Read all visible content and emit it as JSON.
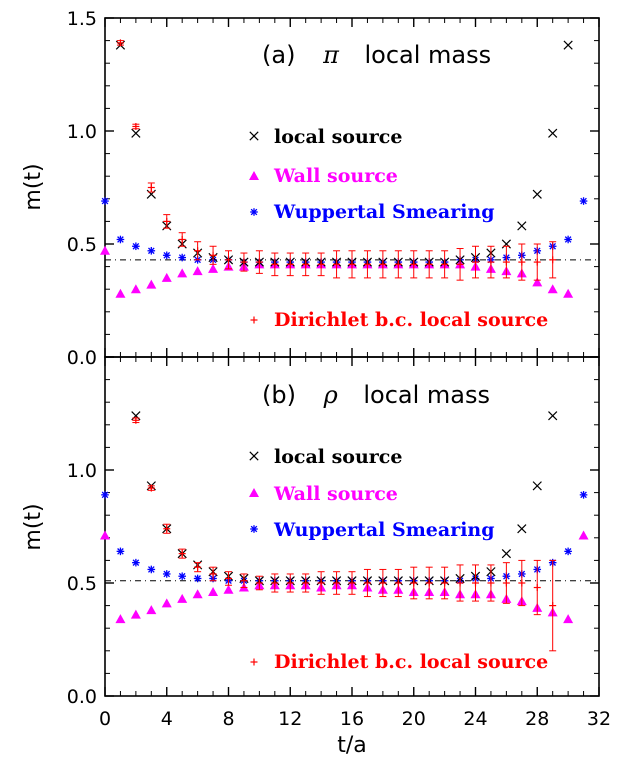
{
  "colors": {
    "local": "#000000",
    "wall": "#ff00ff",
    "wuppertal": "#0000ff",
    "dirichlet": "#ff0000",
    "axis": "#000000"
  },
  "shared": {
    "xlabel": "t/a",
    "xlim": [
      0,
      32
    ],
    "xticks": [
      0,
      4,
      8,
      12,
      16,
      20,
      24,
      28,
      32
    ],
    "xtick_labels": [
      "0",
      "4",
      "8",
      "12",
      "16",
      "20",
      "24",
      "28",
      "32"
    ]
  },
  "chart_data": [
    {
      "type": "scatter",
      "panel": "a",
      "title_prefix": "(a)",
      "title_symbol": "π",
      "title_suffix": "local mass",
      "ylabel": "m(t)",
      "ylim": [
        0,
        1.5
      ],
      "yticks": [
        0,
        0.5,
        1.0,
        1.5
      ],
      "ytick_labels": [
        "0.0",
        "0.5",
        "1.0",
        "1.5"
      ],
      "reference_line": 0.43,
      "legend": {
        "local": "local source",
        "wall": "Wall source",
        "wuppertal": "Wuppertal Smearing",
        "dirichlet": "Dirichlet b.c. local source"
      },
      "series": {
        "local": {
          "x": [
            1,
            2,
            3,
            4,
            5,
            6,
            7,
            8,
            9,
            10,
            11,
            12,
            13,
            14,
            15,
            16,
            17,
            18,
            19,
            20,
            21,
            22,
            23,
            24,
            25,
            26,
            27,
            28,
            29,
            30
          ],
          "y": [
            1.38,
            0.99,
            0.72,
            0.58,
            0.5,
            0.46,
            0.44,
            0.43,
            0.42,
            0.42,
            0.42,
            0.42,
            0.42,
            0.42,
            0.42,
            0.42,
            0.42,
            0.42,
            0.42,
            0.42,
            0.42,
            0.42,
            0.43,
            0.44,
            0.46,
            0.5,
            0.58,
            0.72,
            0.99,
            1.38
          ]
        },
        "wall": {
          "x": [
            0,
            1,
            2,
            3,
            4,
            5,
            6,
            7,
            8,
            9,
            10,
            11,
            12,
            13,
            14,
            15,
            16,
            17,
            18,
            19,
            20,
            21,
            22,
            23,
            24,
            25,
            26,
            27,
            28,
            29,
            30
          ],
          "y": [
            0.47,
            0.28,
            0.3,
            0.32,
            0.35,
            0.37,
            0.38,
            0.39,
            0.4,
            0.4,
            0.41,
            0.41,
            0.41,
            0.41,
            0.41,
            0.41,
            0.41,
            0.41,
            0.41,
            0.41,
            0.41,
            0.41,
            0.41,
            0.41,
            0.4,
            0.39,
            0.38,
            0.37,
            0.33,
            0.3,
            0.28
          ]
        },
        "wuppertal": {
          "x": [
            0,
            1,
            2,
            3,
            4,
            5,
            6,
            7,
            8,
            9,
            10,
            11,
            12,
            13,
            14,
            15,
            16,
            17,
            18,
            19,
            20,
            21,
            22,
            23,
            24,
            25,
            26,
            27,
            28,
            29,
            30,
            31
          ],
          "y": [
            0.69,
            0.52,
            0.49,
            0.47,
            0.45,
            0.44,
            0.43,
            0.43,
            0.43,
            0.42,
            0.42,
            0.42,
            0.42,
            0.42,
            0.42,
            0.42,
            0.42,
            0.42,
            0.42,
            0.42,
            0.42,
            0.42,
            0.42,
            0.43,
            0.43,
            0.43,
            0.44,
            0.45,
            0.47,
            0.49,
            0.52,
            0.69
          ]
        },
        "dirichlet": {
          "x": [
            1,
            2,
            3,
            4,
            5,
            6,
            7,
            8,
            9,
            10,
            11,
            12,
            13,
            14,
            15,
            16,
            17,
            18,
            19,
            20,
            21,
            22,
            23,
            24,
            25,
            26,
            27,
            28,
            29
          ],
          "y": [
            1.39,
            1.02,
            0.75,
            0.6,
            0.52,
            0.47,
            0.45,
            0.43,
            0.42,
            0.42,
            0.41,
            0.41,
            0.41,
            0.41,
            0.41,
            0.41,
            0.41,
            0.41,
            0.41,
            0.41,
            0.41,
            0.41,
            0.41,
            0.42,
            0.42,
            0.42,
            0.42,
            0.42,
            0.43
          ],
          "err": [
            0.01,
            0.01,
            0.02,
            0.03,
            0.03,
            0.04,
            0.04,
            0.04,
            0.04,
            0.05,
            0.05,
            0.05,
            0.05,
            0.05,
            0.06,
            0.06,
            0.06,
            0.06,
            0.06,
            0.06,
            0.06,
            0.06,
            0.07,
            0.07,
            0.07,
            0.07,
            0.08,
            0.08,
            0.08
          ]
        }
      }
    },
    {
      "type": "scatter",
      "panel": "b",
      "title_prefix": "(b)",
      "title_symbol": "ρ",
      "title_suffix": "local mass",
      "ylabel": "m(t)",
      "ylim": [
        0,
        1.5
      ],
      "yticks": [
        0,
        0.5,
        1.0
      ],
      "ytick_labels": [
        "0.0",
        "0.5",
        "1.0"
      ],
      "reference_line": 0.51,
      "legend": {
        "local": "local source",
        "wall": "Wall source",
        "wuppertal": "Wuppertal Smearing",
        "dirichlet": "Dirichlet b.c. local source"
      },
      "series": {
        "local": {
          "x": [
            2,
            3,
            4,
            5,
            6,
            7,
            8,
            9,
            10,
            11,
            12,
            13,
            14,
            15,
            16,
            17,
            18,
            19,
            20,
            21,
            22,
            23,
            24,
            25,
            26,
            27,
            28,
            29
          ],
          "y": [
            1.24,
            0.93,
            0.74,
            0.63,
            0.58,
            0.55,
            0.53,
            0.52,
            0.51,
            0.51,
            0.51,
            0.51,
            0.51,
            0.51,
            0.51,
            0.51,
            0.51,
            0.51,
            0.51,
            0.51,
            0.51,
            0.52,
            0.53,
            0.55,
            0.63,
            0.74,
            0.93,
            1.24
          ]
        },
        "wall": {
          "x": [
            0,
            1,
            2,
            3,
            4,
            5,
            6,
            7,
            8,
            9,
            10,
            11,
            12,
            13,
            14,
            15,
            16,
            17,
            18,
            19,
            20,
            21,
            22,
            23,
            24,
            25,
            26,
            27,
            28,
            29,
            30,
            31
          ],
          "y": [
            0.71,
            0.34,
            0.36,
            0.38,
            0.41,
            0.43,
            0.45,
            0.46,
            0.47,
            0.48,
            0.49,
            0.49,
            0.49,
            0.49,
            0.48,
            0.49,
            0.49,
            0.48,
            0.47,
            0.47,
            0.46,
            0.46,
            0.46,
            0.45,
            0.45,
            0.45,
            0.43,
            0.42,
            0.39,
            0.37,
            0.34,
            0.71
          ]
        },
        "wuppertal": {
          "x": [
            0,
            1,
            2,
            3,
            4,
            5,
            6,
            7,
            8,
            9,
            10,
            11,
            12,
            13,
            14,
            15,
            16,
            17,
            18,
            19,
            20,
            21,
            22,
            23,
            24,
            25,
            26,
            27,
            28,
            29,
            30,
            31
          ],
          "y": [
            0.89,
            0.64,
            0.59,
            0.56,
            0.54,
            0.53,
            0.52,
            0.52,
            0.51,
            0.51,
            0.51,
            0.51,
            0.51,
            0.51,
            0.51,
            0.51,
            0.51,
            0.51,
            0.51,
            0.51,
            0.51,
            0.51,
            0.51,
            0.51,
            0.52,
            0.52,
            0.53,
            0.54,
            0.56,
            0.59,
            0.64,
            0.89
          ]
        },
        "dirichlet": {
          "x": [
            2,
            3,
            4,
            5,
            6,
            7,
            8,
            9,
            10,
            11,
            12,
            13,
            14,
            15,
            16,
            17,
            18,
            19,
            20,
            21,
            22,
            23,
            24,
            25,
            26,
            27,
            28,
            29
          ],
          "y": [
            1.22,
            0.92,
            0.74,
            0.63,
            0.57,
            0.54,
            0.52,
            0.51,
            0.5,
            0.5,
            0.5,
            0.5,
            0.5,
            0.5,
            0.5,
            0.5,
            0.5,
            0.5,
            0.5,
            0.5,
            0.5,
            0.5,
            0.5,
            0.5,
            0.5,
            0.5,
            0.48,
            0.4
          ],
          "err": [
            0.01,
            0.01,
            0.02,
            0.02,
            0.02,
            0.03,
            0.03,
            0.03,
            0.03,
            0.04,
            0.04,
            0.04,
            0.05,
            0.05,
            0.05,
            0.06,
            0.06,
            0.06,
            0.07,
            0.07,
            0.07,
            0.08,
            0.08,
            0.08,
            0.09,
            0.1,
            0.12,
            0.2
          ]
        }
      }
    }
  ]
}
